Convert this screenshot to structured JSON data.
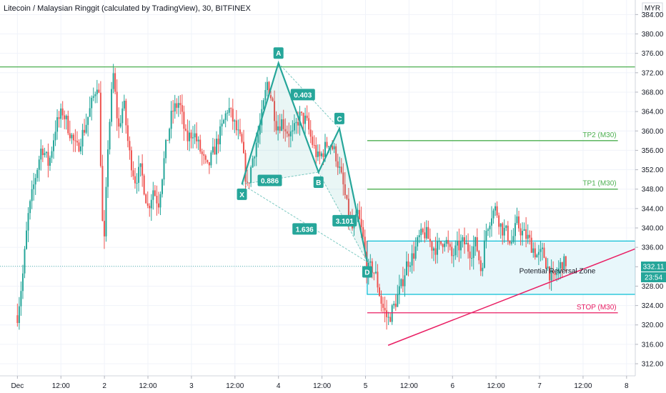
{
  "chart_data": {
    "type": "candlestick",
    "title": "Litecoin / Malaysian Ringgit (calculated by TradingView), 30, BITFINEX",
    "currency": "MYR",
    "price_axis": {
      "ylim": [
        309.5,
        387
      ],
      "ticks": [
        "312.00",
        "316.00",
        "320.00",
        "324.00",
        "328.00",
        "332.00",
        "336.00",
        "340.00",
        "344.00",
        "348.00",
        "352.00",
        "356.00",
        "360.00",
        "364.00",
        "368.00",
        "372.00",
        "376.00",
        "380.00",
        "384.00"
      ]
    },
    "time_axis": {
      "ticks": [
        "Dec",
        "12:00",
        "2",
        "12:00",
        "3",
        "12:00",
        "4",
        "12:00",
        "5",
        "12:00",
        "6",
        "12:00",
        "7",
        "12:00",
        "8"
      ],
      "tick_start": 0,
      "tick_step": 0.5,
      "xlim": [
        -0.2,
        7.1
      ]
    },
    "last_price": "332.11",
    "countdown": "23:54",
    "colors": {
      "up": "#26a69a",
      "down": "#ef5350",
      "pattern": "#26a69a",
      "tp": "#4caf50",
      "stop": "#e91e63",
      "zone_border": "#00bcd4",
      "zone_fill": "#e8f7fb"
    },
    "price_path": [
      [
        0.0,
        322
      ],
      [
        0.06,
        330
      ],
      [
        0.12,
        342
      ],
      [
        0.2,
        350
      ],
      [
        0.28,
        357
      ],
      [
        0.36,
        353
      ],
      [
        0.44,
        361
      ],
      [
        0.52,
        364
      ],
      [
        0.6,
        360
      ],
      [
        0.68,
        356
      ],
      [
        0.78,
        361
      ],
      [
        0.86,
        366
      ],
      [
        0.93,
        371
      ],
      [
        0.99,
        333
      ],
      [
        1.04,
        357
      ],
      [
        1.1,
        372
      ],
      [
        1.16,
        360
      ],
      [
        1.22,
        366
      ],
      [
        1.28,
        356
      ],
      [
        1.35,
        350
      ],
      [
        1.42,
        352
      ],
      [
        1.5,
        344
      ],
      [
        1.56,
        348
      ],
      [
        1.62,
        345
      ],
      [
        1.7,
        356
      ],
      [
        1.78,
        364
      ],
      [
        1.86,
        366
      ],
      [
        1.94,
        358
      ],
      [
        2.02,
        360
      ],
      [
        2.1,
        356
      ],
      [
        2.18,
        352
      ],
      [
        2.26,
        356
      ],
      [
        2.34,
        360
      ],
      [
        2.42,
        365
      ],
      [
        2.5,
        361
      ],
      [
        2.58,
        357
      ],
      [
        2.64,
        348
      ],
      [
        2.71,
        355
      ],
      [
        2.79,
        361
      ],
      [
        2.87,
        370
      ],
      [
        2.93,
        366
      ],
      [
        2.98,
        361
      ],
      [
        3.04,
        362
      ],
      [
        3.1,
        360
      ],
      [
        3.16,
        359
      ],
      [
        3.24,
        363
      ],
      [
        3.32,
        362
      ],
      [
        3.38,
        358
      ],
      [
        3.46,
        354
      ],
      [
        3.52,
        356
      ],
      [
        3.58,
        358
      ],
      [
        3.66,
        355
      ],
      [
        3.74,
        349
      ],
      [
        3.8,
        343
      ],
      [
        3.86,
        339
      ],
      [
        3.91,
        343
      ],
      [
        3.97,
        338
      ],
      [
        4.02,
        331
      ],
      [
        4.07,
        332
      ],
      [
        4.12,
        330
      ],
      [
        4.19,
        324
      ],
      [
        4.26,
        321
      ],
      [
        4.33,
        324
      ],
      [
        4.41,
        328
      ],
      [
        4.48,
        333
      ],
      [
        4.54,
        334
      ],
      [
        4.62,
        338
      ],
      [
        4.69,
        339
      ],
      [
        4.77,
        336
      ],
      [
        4.84,
        336
      ],
      [
        4.91,
        338
      ],
      [
        4.99,
        334
      ],
      [
        5.06,
        336
      ],
      [
        5.13,
        337
      ],
      [
        5.21,
        335
      ],
      [
        5.27,
        337
      ],
      [
        5.33,
        331
      ],
      [
        5.39,
        340
      ],
      [
        5.45,
        343
      ],
      [
        5.5,
        344
      ],
      [
        5.56,
        340
      ],
      [
        5.62,
        339
      ],
      [
        5.68,
        337
      ],
      [
        5.74,
        341
      ],
      [
        5.8,
        339
      ],
      [
        5.86,
        338
      ],
      [
        5.92,
        336
      ],
      [
        5.98,
        334
      ],
      [
        6.04,
        335
      ],
      [
        6.09,
        332
      ],
      [
        6.15,
        329
      ],
      [
        6.21,
        331
      ],
      [
        6.26,
        333
      ],
      [
        6.31,
        332.11
      ]
    ],
    "harmonic_pattern": {
      "points": [
        {
          "label": "X",
          "time": 2.58,
          "price": 349
        },
        {
          "label": "A",
          "time": 3.0,
          "price": 374
        },
        {
          "label": "B",
          "time": 3.46,
          "price": 351.5
        },
        {
          "label": "C",
          "time": 3.7,
          "price": 360.5
        },
        {
          "label": "D",
          "time": 4.02,
          "price": 333
        }
      ],
      "ratios": [
        {
          "value": "0.403",
          "time": 3.28,
          "price": 367.5
        },
        {
          "value": "0.886",
          "time": 2.9,
          "price": 349.8
        },
        {
          "value": "1.636",
          "time": 3.3,
          "price": 339.8
        },
        {
          "value": "3.101",
          "time": 3.76,
          "price": 341.5
        }
      ]
    },
    "levels": [
      {
        "name": "horizontal",
        "price": 373.2,
        "t1": -0.2,
        "t2": 7.1,
        "label": ""
      },
      {
        "name": "TP2",
        "price": 358,
        "t1": 4.02,
        "t2": 6.9,
        "label": "TP2 (M30)"
      },
      {
        "name": "TP1",
        "price": 348,
        "t1": 4.02,
        "t2": 6.9,
        "label": "TP1 (M30)"
      },
      {
        "name": "STOP",
        "price": 322.5,
        "t1": 4.02,
        "t2": 6.9,
        "label": "STOP (M30)"
      }
    ],
    "zone": {
      "label": "Potential Reversal Zone",
      "top": 337.3,
      "bottom": 326.3,
      "t1": 4.02,
      "t2": 7.1
    },
    "trendline": {
      "t1": 4.26,
      "p1": 315.8,
      "t2": 7.1,
      "p2": 335.7
    }
  }
}
